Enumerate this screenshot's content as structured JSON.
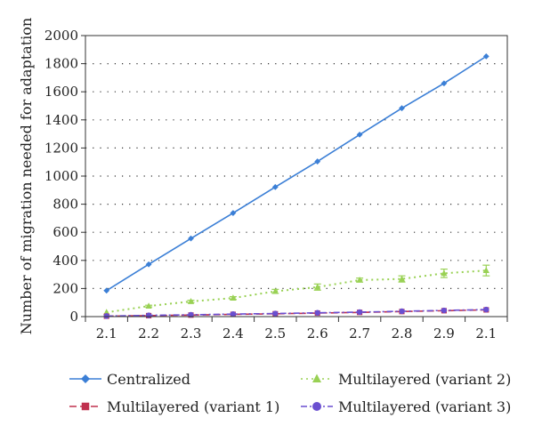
{
  "chart_data": {
    "type": "line",
    "title": "",
    "xlabel": "",
    "ylabel": "Number of migration needed for adaptation",
    "categories": [
      "2.1",
      "2.2",
      "2.3",
      "2.4",
      "2.5",
      "2.6",
      "2.7",
      "2.8",
      "2.9",
      "2.1"
    ],
    "ylim": [
      0,
      2000
    ],
    "yticks": [
      0,
      200,
      400,
      600,
      800,
      1000,
      1200,
      1400,
      1600,
      1800,
      2000
    ],
    "grid": "horizontal dotted",
    "legend_position": "bottom",
    "series": [
      {
        "name": "Centralized",
        "color": "#3b7fd6",
        "marker": "diamond",
        "line_style": "solid",
        "values": [
          185,
          372,
          556,
          737,
          922,
          1104,
          1295,
          1483,
          1660,
          1852
        ],
        "errors": [
          0,
          0,
          0,
          0,
          0,
          0,
          0,
          0,
          0,
          0
        ]
      },
      {
        "name": "Multilayered (variant 1)",
        "color": "#c0314f",
        "marker": "square",
        "line_style": "dashed",
        "values": [
          3,
          7,
          11,
          16,
          20,
          25,
          30,
          36,
          42,
          48
        ],
        "errors": [
          0,
          0,
          0,
          0,
          0,
          0,
          0,
          0,
          0,
          0
        ]
      },
      {
        "name": "Multilayered (variant 2)",
        "color": "#99d154",
        "marker": "triangle",
        "line_style": "dotted",
        "values": [
          30,
          75,
          108,
          132,
          180,
          210,
          260,
          268,
          308,
          328
        ],
        "errors": [
          0,
          6,
          8,
          10,
          14,
          22,
          14,
          22,
          30,
          38
        ]
      },
      {
        "name": "Multilayered (variant 3)",
        "color": "#6a4fd0",
        "marker": "circle",
        "line_style": "dashdot",
        "values": [
          4,
          9,
          13,
          18,
          22,
          27,
          32,
          38,
          44,
          50
        ],
        "errors": [
          0,
          0,
          0,
          0,
          0,
          0,
          0,
          0,
          0,
          0
        ]
      }
    ]
  }
}
